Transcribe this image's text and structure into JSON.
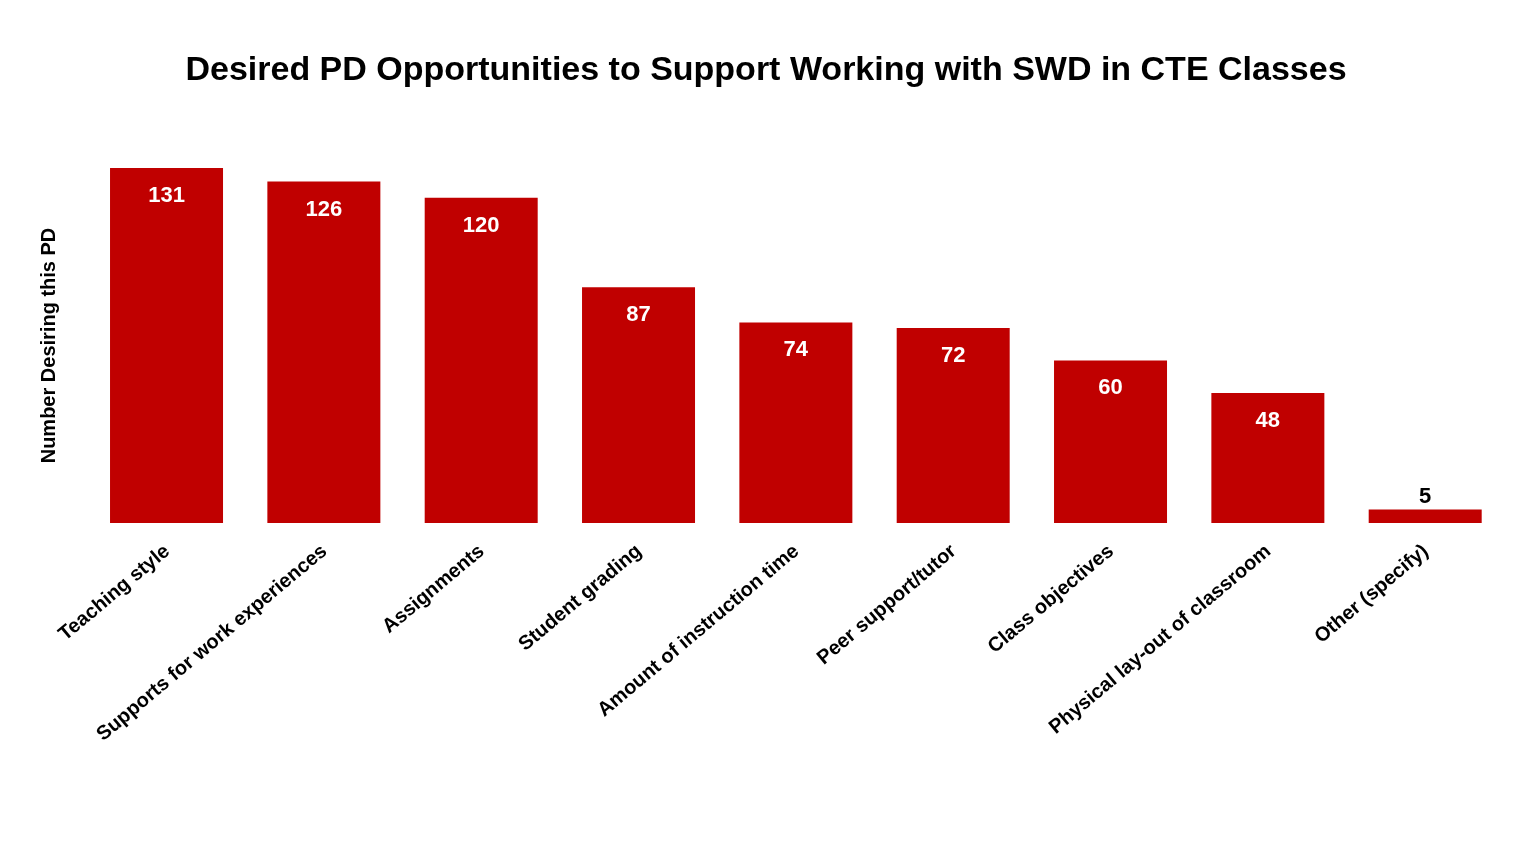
{
  "chart_data": {
    "type": "bar",
    "title": "Desired PD Opportunities to Support Working with SWD in CTE Classes",
    "ylabel": "Number Desiring this PD",
    "categories": [
      "Teaching style",
      "Supports for work experiences",
      "Assignments",
      "Student grading",
      "Amount of instruction time",
      "Peer support/tutor",
      "Class objectives",
      "Physical lay-out of classroom",
      "Other (specify)"
    ],
    "values": [
      131,
      126,
      120,
      87,
      74,
      72,
      60,
      48,
      5
    ],
    "color": "#c00000",
    "data_labels": true
  }
}
